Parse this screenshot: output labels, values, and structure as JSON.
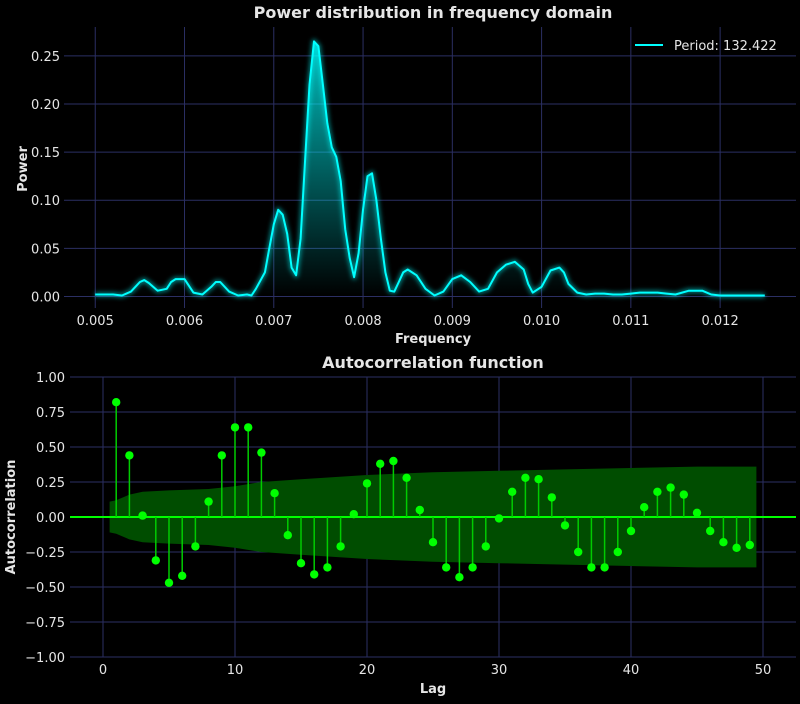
{
  "chart_data": [
    {
      "type": "line",
      "title": "Power distribution in frequency domain",
      "xlabel": "Frequency",
      "ylabel": "Power",
      "xlim": [
        0.00465,
        0.01285
      ],
      "ylim": [
        -0.012,
        0.28
      ],
      "xticks": [
        0.005,
        0.006,
        0.007,
        0.008,
        0.009,
        0.01,
        0.011,
        0.012
      ],
      "xtick_labels": [
        "0.005",
        "0.006",
        "0.007",
        "0.008",
        "0.009",
        "0.010",
        "0.011",
        "0.012"
      ],
      "yticks": [
        0.0,
        0.05,
        0.1,
        0.15,
        0.2,
        0.25
      ],
      "ytick_labels": [
        "0.00",
        "0.05",
        "0.10",
        "0.15",
        "0.20",
        "0.25"
      ],
      "grid": true,
      "legend_position": "top-right",
      "color": "#00ffff",
      "series": [
        {
          "name": "Period: 132.422",
          "x": [
            0.005,
            0.0051,
            0.0052,
            0.0053,
            0.0054,
            0.00545,
            0.0055,
            0.00555,
            0.0056,
            0.0057,
            0.0058,
            0.00585,
            0.0059,
            0.006,
            0.0061,
            0.0062,
            0.0063,
            0.00635,
            0.0064,
            0.0065,
            0.0066,
            0.0067,
            0.00675,
            0.0068,
            0.0069,
            0.00695,
            0.007,
            0.00705,
            0.0071,
            0.00715,
            0.0072,
            0.00725,
            0.0073,
            0.00735,
            0.0074,
            0.00745,
            0.0075,
            0.00755,
            0.0076,
            0.00765,
            0.0077,
            0.00775,
            0.0078,
            0.00785,
            0.0079,
            0.00795,
            0.008,
            0.00805,
            0.0081,
            0.00815,
            0.0082,
            0.00825,
            0.0083,
            0.00835,
            0.0084,
            0.00845,
            0.0085,
            0.0086,
            0.0087,
            0.0088,
            0.0089,
            0.009,
            0.0091,
            0.0092,
            0.0093,
            0.0094,
            0.0095,
            0.0096,
            0.0097,
            0.0098,
            0.00985,
            0.0099,
            0.01,
            0.0101,
            0.0102,
            0.01025,
            0.0103,
            0.0104,
            0.0105,
            0.0106,
            0.0107,
            0.0108,
            0.0109,
            0.011,
            0.0111,
            0.0112,
            0.0113,
            0.0114,
            0.0115,
            0.01165,
            0.0118,
            0.0119,
            0.012,
            0.0122,
            0.0124,
            0.0125
          ],
          "y": [
            0.002,
            0.002,
            0.002,
            0.001,
            0.005,
            0.01,
            0.015,
            0.017,
            0.014,
            0.006,
            0.008,
            0.015,
            0.018,
            0.018,
            0.004,
            0.002,
            0.01,
            0.015,
            0.015,
            0.005,
            0.001,
            0.002,
            0.001,
            0.008,
            0.025,
            0.05,
            0.075,
            0.09,
            0.085,
            0.065,
            0.03,
            0.022,
            0.06,
            0.14,
            0.22,
            0.265,
            0.26,
            0.22,
            0.18,
            0.155,
            0.145,
            0.12,
            0.07,
            0.04,
            0.02,
            0.045,
            0.09,
            0.125,
            0.128,
            0.1,
            0.06,
            0.025,
            0.006,
            0.005,
            0.015,
            0.025,
            0.028,
            0.022,
            0.008,
            0.001,
            0.005,
            0.018,
            0.022,
            0.015,
            0.005,
            0.008,
            0.025,
            0.033,
            0.036,
            0.028,
            0.013,
            0.004,
            0.01,
            0.027,
            0.03,
            0.025,
            0.013,
            0.004,
            0.002,
            0.003,
            0.003,
            0.002,
            0.002,
            0.003,
            0.004,
            0.004,
            0.004,
            0.003,
            0.002,
            0.006,
            0.006,
            0.002,
            0.001,
            0.001,
            0.001,
            0.001
          ]
        }
      ]
    },
    {
      "type": "stem",
      "title": "Autocorrelation function",
      "xlabel": "Lag",
      "ylabel": "Autocorrelation",
      "xlim": [
        -2.5,
        52.5
      ],
      "ylim": [
        -1.0,
        1.0
      ],
      "xticks": [
        0,
        10,
        20,
        30,
        40,
        50
      ],
      "xtick_labels": [
        "0",
        "10",
        "20",
        "30",
        "40",
        "50"
      ],
      "yticks": [
        -1.0,
        -0.75,
        -0.5,
        -0.25,
        0.0,
        0.25,
        0.5,
        0.75,
        1.0
      ],
      "ytick_labels": [
        "−1.00",
        "−0.75",
        "−0.50",
        "−0.25",
        "0.00",
        "0.25",
        "0.50",
        "0.75",
        "1.00"
      ],
      "grid": true,
      "color": "#00ff00",
      "confidence_band_color": "#004d00",
      "lags": [
        1,
        2,
        3,
        4,
        5,
        6,
        7,
        8,
        9,
        10,
        11,
        12,
        13,
        14,
        15,
        16,
        17,
        18,
        19,
        20,
        21,
        22,
        23,
        24,
        25,
        26,
        27,
        28,
        29,
        30,
        31,
        32,
        33,
        34,
        35,
        36,
        37,
        38,
        39,
        40,
        41,
        42,
        43,
        44,
        45,
        46,
        47,
        48,
        49
      ],
      "values": [
        0.82,
        0.44,
        0.01,
        -0.31,
        -0.47,
        -0.42,
        -0.21,
        0.11,
        0.44,
        0.64,
        0.64,
        0.46,
        0.17,
        -0.13,
        -0.33,
        -0.41,
        -0.36,
        -0.21,
        0.02,
        0.24,
        0.38,
        0.4,
        0.28,
        0.05,
        -0.18,
        -0.36,
        -0.43,
        -0.36,
        -0.21,
        -0.01,
        0.18,
        0.28,
        0.27,
        0.14,
        -0.06,
        -0.25,
        -0.36,
        -0.36,
        -0.25,
        -0.1,
        0.07,
        0.18,
        0.21,
        0.16,
        0.03,
        -0.1,
        -0.18,
        -0.22,
        -0.2
      ],
      "confidence_band": {
        "lags": [
          0.5,
          1,
          2,
          3,
          5,
          8,
          10,
          12,
          15,
          20,
          25,
          30,
          35,
          40,
          45,
          49.5
        ],
        "upper": [
          0.11,
          0.12,
          0.16,
          0.18,
          0.19,
          0.2,
          0.22,
          0.25,
          0.27,
          0.3,
          0.32,
          0.33,
          0.34,
          0.35,
          0.36,
          0.36
        ]
      }
    }
  ]
}
